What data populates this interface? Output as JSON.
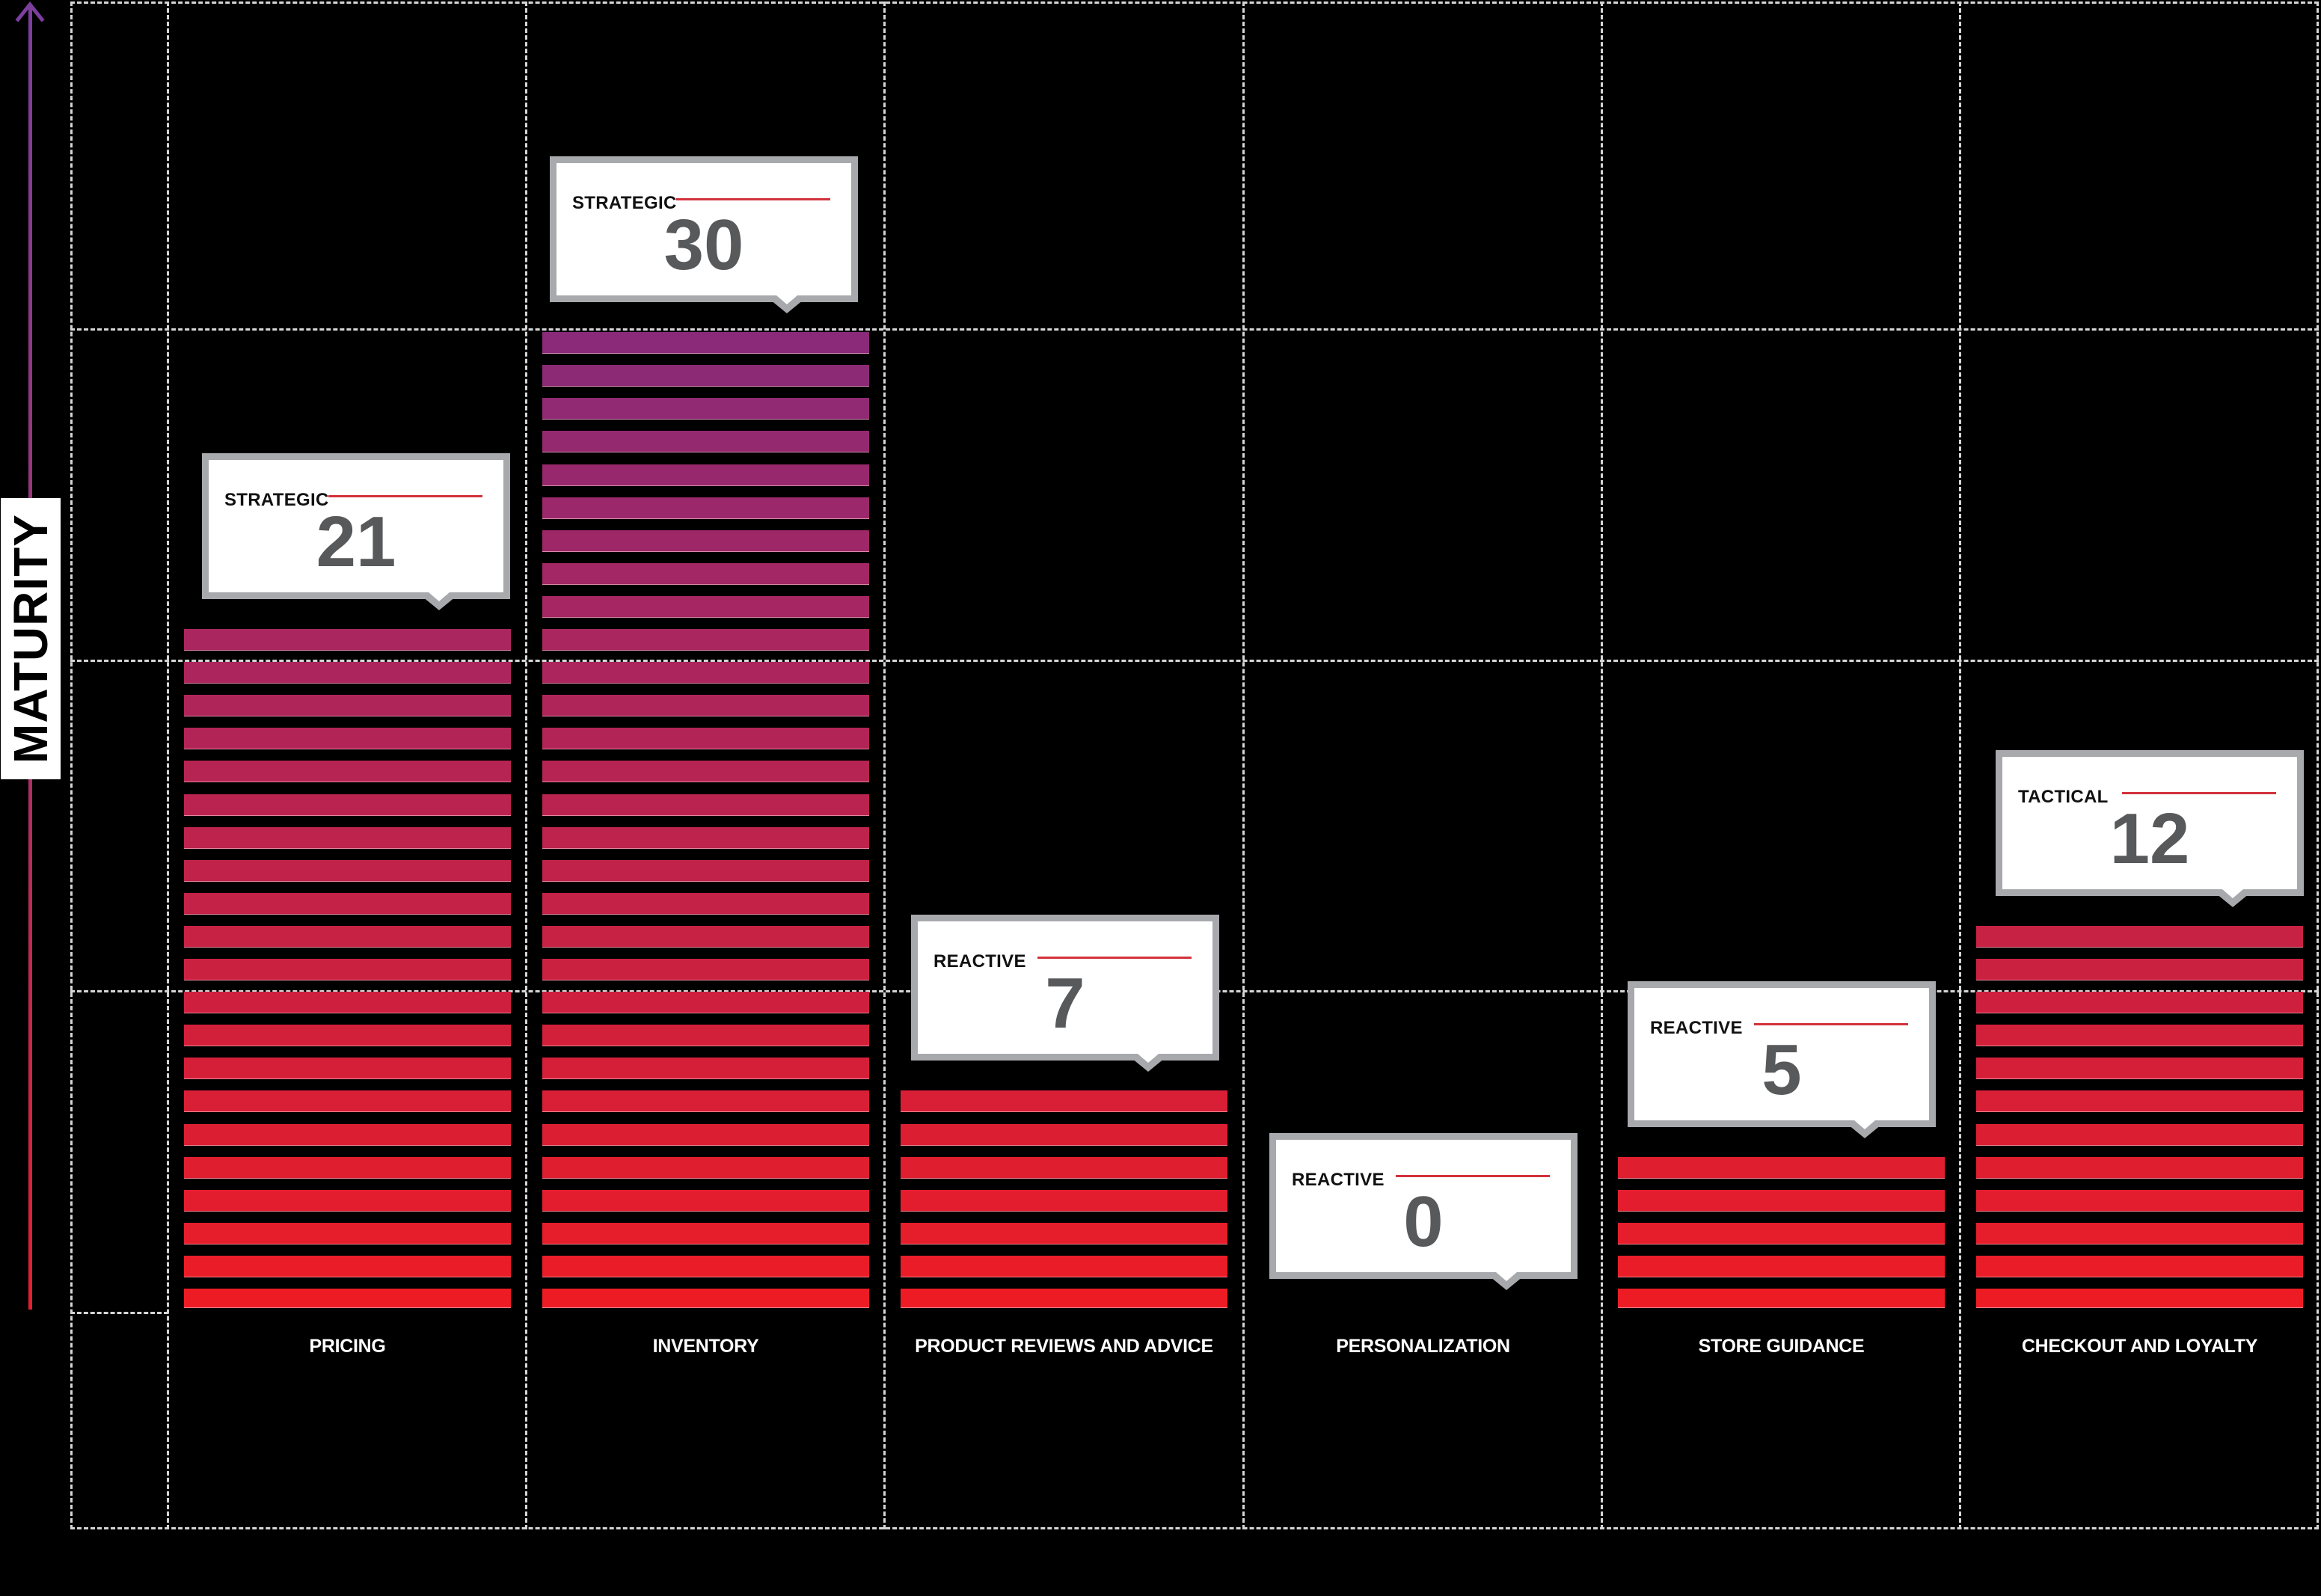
{
  "axis": {
    "label": "MATURITY",
    "arrow_color_top": "#7B3F9E",
    "arrow_color_bottom": "#E31F30"
  },
  "colors": {
    "bar_bottom": "#ED1C24",
    "bar_top": "#8A2A79",
    "callout_border": "#A7A9AC",
    "callout_rule": "#D2323C",
    "callout_number": "#58595B",
    "grid": "#D6D6D6",
    "background": "#000000"
  },
  "categories": [
    {
      "label": "PRICING",
      "level": "STRATEGIC",
      "value": "21"
    },
    {
      "label": "INVENTORY",
      "level": "STRATEGIC",
      "value": "30"
    },
    {
      "label": "PRODUCT REVIEWS AND ADVICE",
      "level": "REACTIVE",
      "value": "7"
    },
    {
      "label": "PERSONALIZATION",
      "level": "REACTIVE",
      "value": "0"
    },
    {
      "label": "STORE GUIDANCE",
      "level": "REACTIVE",
      "value": "5"
    },
    {
      "label": "CHECKOUT AND LOYALTY",
      "level": "TACTICAL",
      "value": "12"
    }
  ],
  "chart_data": {
    "type": "bar",
    "title": "",
    "xlabel": "",
    "ylabel": "MATURITY",
    "categories": [
      "PRICING",
      "INVENTORY",
      "PRODUCT REVIEWS AND ADVICE",
      "PERSONALIZATION",
      "STORE GUIDANCE",
      "CHECKOUT AND LOYALTY"
    ],
    "values": [
      21,
      30,
      7,
      0,
      5,
      12
    ],
    "annotations": [
      "STRATEGIC",
      "STRATEGIC",
      "REACTIVE",
      "REACTIVE",
      "REACTIVE",
      "TACTICAL"
    ],
    "ylim": [
      0,
      30
    ],
    "grid": true,
    "legend": "none",
    "style": "stacked segment bars, color gradient red (low) to purple (high)"
  }
}
